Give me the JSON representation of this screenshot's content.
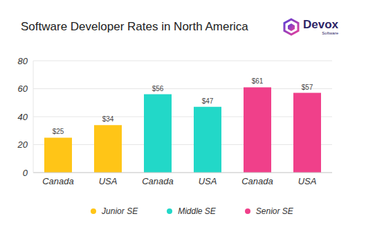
{
  "chart_data": {
    "type": "bar",
    "title": "Software Developer Rates in North America",
    "logo": [
      "Devox",
      "Software"
    ],
    "categories": [
      "Canada",
      "USA",
      "Canada",
      "USA",
      "Canada",
      "USA"
    ],
    "series": [
      {
        "name": "Junior SE",
        "color": "#ffc517",
        "values": [
          25,
          34,
          null,
          null,
          null,
          null
        ],
        "value_labels": [
          "$25",
          "$34",
          null,
          null,
          null,
          null
        ]
      },
      {
        "name": "Middle SE",
        "color": "#22d8c8",
        "values": [
          null,
          null,
          56,
          47,
          null,
          null
        ],
        "value_labels": [
          null,
          null,
          "$56",
          "$47",
          null,
          null
        ]
      },
      {
        "name": "Senior SE",
        "color": "#f0408a",
        "values": [
          null,
          null,
          null,
          null,
          61,
          57
        ],
        "value_labels": [
          null,
          null,
          null,
          null,
          "$61",
          "$57"
        ]
      }
    ],
    "ylim": [
      0,
      80
    ],
    "yticks": [
      0,
      20,
      40,
      60,
      80
    ],
    "grid": true,
    "data_labels": true,
    "legend": "bottom"
  }
}
